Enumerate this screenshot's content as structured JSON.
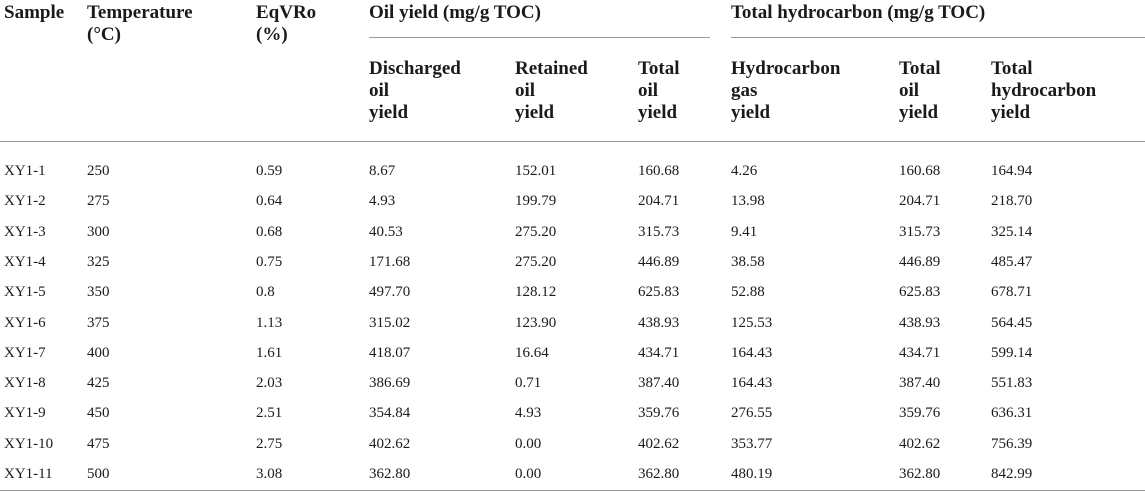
{
  "table": {
    "headers": {
      "sample": "Sample",
      "temperature": "Temperature\n(°C)",
      "eqvro": "EqVRo\n(%)",
      "oil_group": "Oil yield (mg/g TOC)",
      "hc_group": "Total hydrocarbon (mg/g TOC)",
      "discharged": "Discharged\noil\nyield",
      "retained": "Retained\noil\nyield",
      "total_oil": "Total\noil\nyield",
      "hc_gas": "Hydrocarbon\ngas\nyield",
      "total_oil_2": "Total\noil\nyield",
      "total_hc": "Total\nhydrocarbon\nyield"
    },
    "rows": [
      [
        "XY1-1",
        "250",
        "0.59",
        "8.67",
        "152.01",
        "160.68",
        "4.26",
        "160.68",
        "164.94"
      ],
      [
        "XY1-2",
        "275",
        "0.64",
        "4.93",
        "199.79",
        "204.71",
        "13.98",
        "204.71",
        "218.70"
      ],
      [
        "XY1-3",
        "300",
        "0.68",
        "40.53",
        "275.20",
        "315.73",
        "9.41",
        "315.73",
        "325.14"
      ],
      [
        "XY1-4",
        "325",
        "0.75",
        "171.68",
        "275.20",
        "446.89",
        "38.58",
        "446.89",
        "485.47"
      ],
      [
        "XY1-5",
        "350",
        "0.8",
        "497.70",
        "128.12",
        "625.83",
        "52.88",
        "625.83",
        "678.71"
      ],
      [
        "XY1-6",
        "375",
        "1.13",
        "315.02",
        "123.90",
        "438.93",
        "125.53",
        "438.93",
        "564.45"
      ],
      [
        "XY1-7",
        "400",
        "1.61",
        "418.07",
        "16.64",
        "434.71",
        "164.43",
        "434.71",
        "599.14"
      ],
      [
        "XY1-8",
        "425",
        "2.03",
        "386.69",
        "0.71",
        "387.40",
        "164.43",
        "387.40",
        "551.83"
      ],
      [
        "XY1-9",
        "450",
        "2.51",
        "354.84",
        "4.93",
        "359.76",
        "276.55",
        "359.76",
        "636.31"
      ],
      [
        "XY1-10",
        "475",
        "2.75",
        "402.62",
        "0.00",
        "402.62",
        "353.77",
        "402.62",
        "756.39"
      ],
      [
        "XY1-11",
        "500",
        "3.08",
        "362.80",
        "0.00",
        "362.80",
        "480.19",
        "362.80",
        "842.99"
      ]
    ]
  }
}
